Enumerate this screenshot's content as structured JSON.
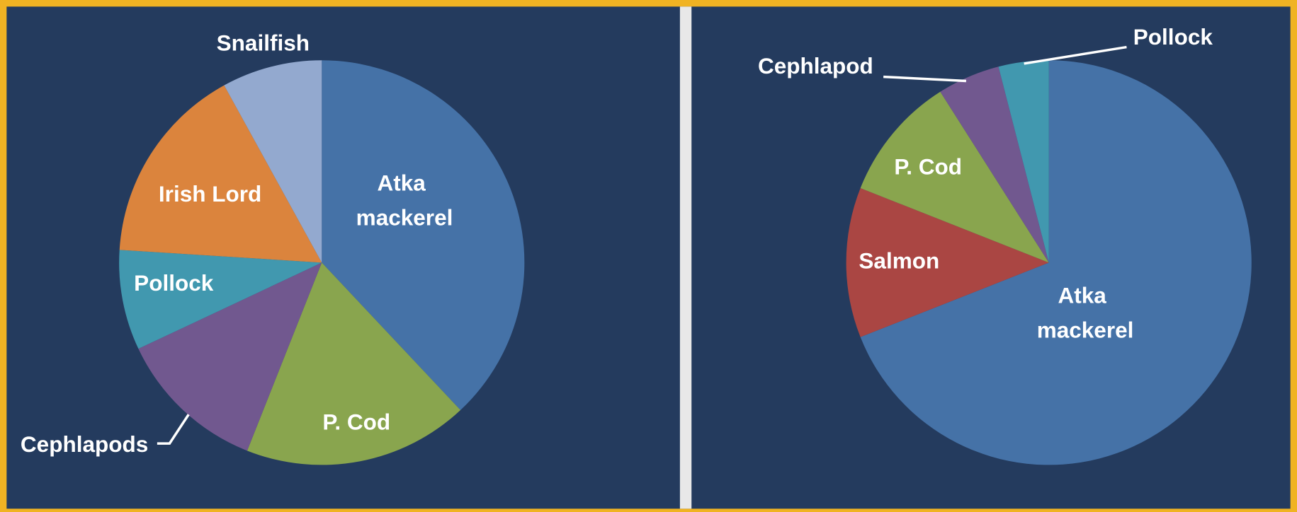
{
  "chart_data": [
    {
      "type": "pie",
      "categories": [
        "Atka mackerel",
        "P. Cod",
        "Cephlapods",
        "Pollock",
        "Irish Lord",
        "Snailfish"
      ],
      "values": [
        38,
        18,
        12,
        8,
        16,
        8
      ],
      "colors": [
        "#4572a7",
        "#89a54e",
        "#71588f",
        "#4198af",
        "#db843d",
        "#93a9cf"
      ]
    },
    {
      "type": "pie",
      "categories": [
        "Atka mackerel",
        "Salmon",
        "P. Cod",
        "Cephlapod",
        "Pollock"
      ],
      "values": [
        69,
        12,
        10,
        5,
        4
      ],
      "colors": [
        "#4572a7",
        "#aa4643",
        "#89a54e",
        "#71588f",
        "#4198af"
      ]
    }
  ]
}
